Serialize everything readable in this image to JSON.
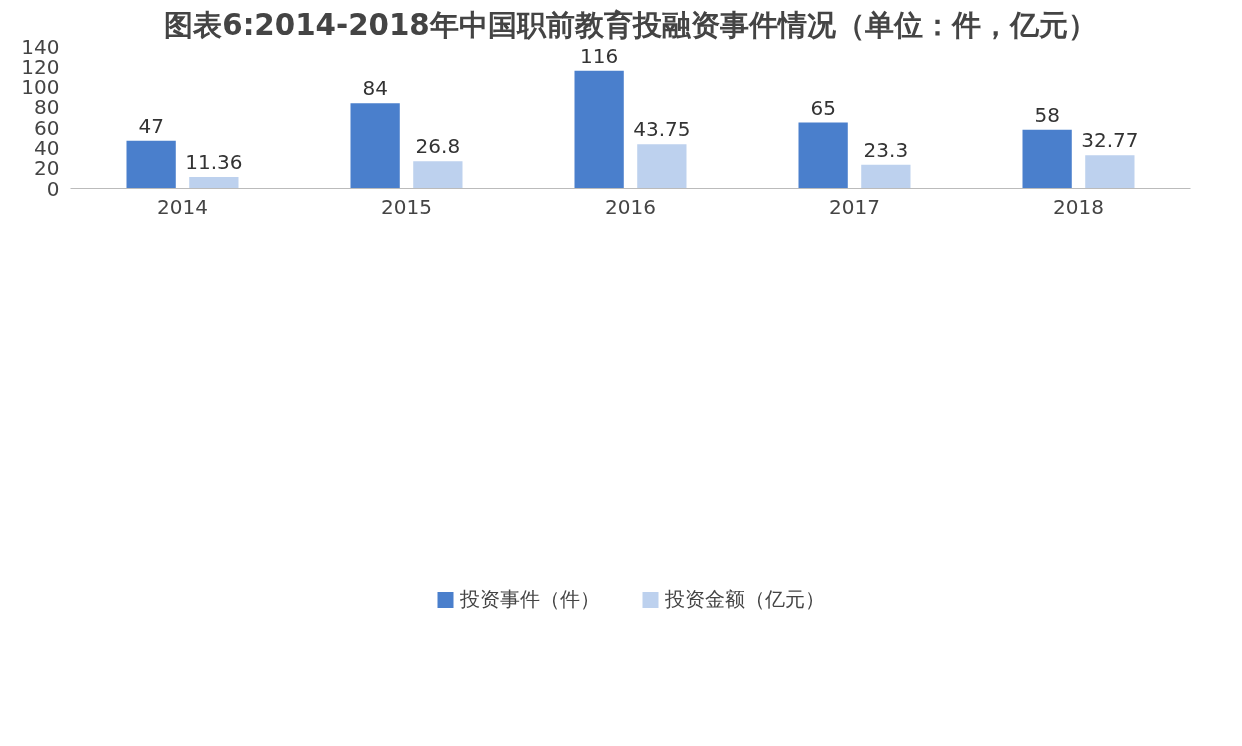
{
  "chart_data": {
    "type": "bar",
    "title": "图表6:2014-2018年中国职前教育投融资事件情况（单位：件，亿元）",
    "categories": [
      "2014",
      "2015",
      "2016",
      "2017",
      "2018"
    ],
    "series": [
      {
        "name": "投资事件（件）",
        "color": "#4a7fcc",
        "values": [
          47,
          84,
          116,
          65,
          58
        ]
      },
      {
        "name": "投资金额（亿元）",
        "color": "#bdd1ee",
        "values": [
          11.36,
          26.8,
          43.75,
          23.3,
          32.77
        ]
      }
    ],
    "ylim": [
      0,
      140
    ],
    "yticks": [
      0,
      20,
      40,
      60,
      80,
      100,
      120,
      140
    ],
    "grid": false,
    "legend": "bottom",
    "data_labels": true
  }
}
